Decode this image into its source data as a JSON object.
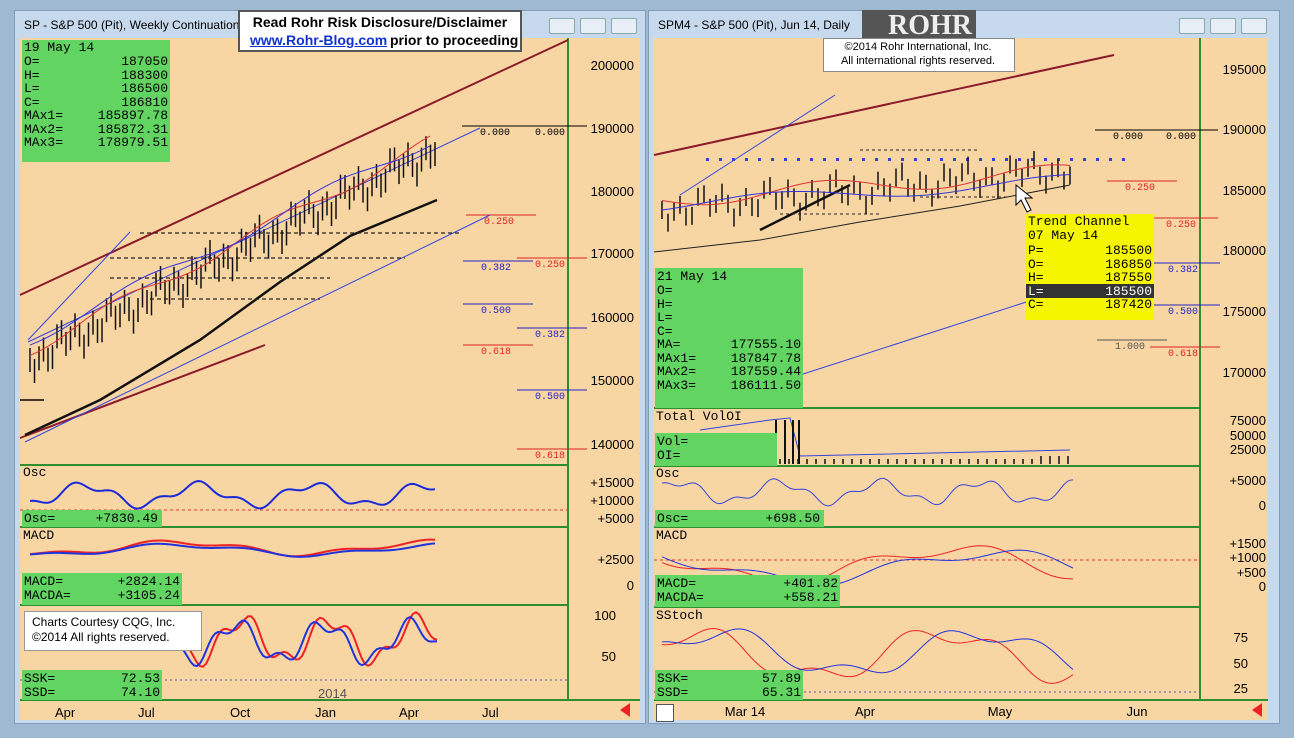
{
  "banner": {
    "line1": "Read Rohr Risk Disclosure/Disclaimer",
    "link": "www.Rohr-Blog.com",
    "line2": "prior to proceeding"
  },
  "left_window": {
    "title": "SP - S&P 500 (Pit), Weekly Continuation",
    "info_box": {
      "date": "19 May 14",
      "rows": [
        {
          "label": "O=",
          "value": 187050
        },
        {
          "label": "H=",
          "value": 188300
        },
        {
          "label": "L=",
          "value": 186500
        },
        {
          "label": "C=",
          "value": 186810
        },
        {
          "label": "MAx1=",
          "value": 185897.78
        },
        {
          "label": "MAx2=",
          "value": 185872.31
        },
        {
          "label": "MAx3=",
          "value": 178979.51
        }
      ]
    },
    "price_axis": [
      200000,
      190000,
      180000,
      170000,
      160000,
      150000,
      140000
    ],
    "fib_labels": [
      "0.000",
      "0.000",
      "0.250",
      "0.250",
      "0.382",
      "0.382",
      "0.500",
      "0.500",
      "0.618",
      "0.618"
    ],
    "osc_panel": {
      "name": "Osc",
      "axis": [
        "+15000",
        "+10000",
        "+5000"
      ],
      "label": "Osc=",
      "value": "+7830.49"
    },
    "macd_panel": {
      "name": "MACD",
      "axis": [
        "+2500",
        0
      ],
      "rows": [
        {
          "label": "MACD=",
          "value": "+2824.14"
        },
        {
          "label": "MACDA=",
          "value": "+3105.24"
        }
      ]
    },
    "stoch_panel": {
      "axis": [
        100,
        50
      ],
      "rows": [
        {
          "label": "SSK=",
          "value": "72.53"
        },
        {
          "label": "SSD=",
          "value": "74.10"
        }
      ]
    },
    "credits": [
      "Charts Courtesy CQG, Inc.",
      "©2014 All rights reserved."
    ],
    "x_axis": [
      "Apr",
      "Jul",
      "Oct",
      "Jan",
      "Apr",
      "Jul"
    ],
    "year_label": "2014"
  },
  "right_window": {
    "title": "SPM4 - S&P 500 (Pit), Jun 14, Daily",
    "logo": "ROHR",
    "copyright": [
      "©2014 Rohr International, Inc.",
      "All international rights reserved."
    ],
    "info_box": {
      "date": "21 May 14",
      "rows": [
        {
          "label": "O="
        },
        {
          "label": "H="
        },
        {
          "label": "L="
        },
        {
          "label": "C="
        },
        {
          "label": "MA=",
          "value": "177555.10"
        },
        {
          "label": "MAx1=",
          "value": 187847.78
        },
        {
          "label": "MAx2=",
          "value": 187559.44
        },
        {
          "label": "MAx3=",
          "value": "186111.50"
        }
      ]
    },
    "trend_box": {
      "title": "Trend Channel",
      "date": "07 May 14",
      "rows": [
        {
          "label": "P=",
          "value": 185500
        },
        {
          "label": "O=",
          "value": 186850
        },
        {
          "label": "H=",
          "value": 187550
        },
        {
          "label": "L=",
          "value": 185500
        },
        {
          "label": "C=",
          "value": 187420
        }
      ]
    },
    "price_axis": [
      195000,
      190000,
      185000,
      180000,
      175000,
      170000
    ],
    "fib_labels": [
      "0.000",
      "0.000",
      "0.250",
      "0.250",
      "0.382",
      "0.500",
      "0.618",
      "1.000"
    ],
    "volume_panel": {
      "name": "Total VolOI",
      "axis": [
        75000,
        50000,
        25000
      ],
      "rows": [
        {
          "label": "Vol="
        },
        {
          "label": "OI="
        }
      ]
    },
    "osc_panel": {
      "name": "Osc",
      "axis": [
        "+5000",
        0
      ],
      "label": "Osc=",
      "value": "+698.50"
    },
    "macd_panel": {
      "name": "MACD",
      "axis": [
        "+1500",
        "+1000",
        "+500",
        0
      ],
      "rows": [
        {
          "label": "MACD=",
          "value": "+401.82"
        },
        {
          "label": "MACDA=",
          "value": "+558.21"
        }
      ]
    },
    "stoch_panel": {
      "name": "SStoch",
      "axis": [
        75,
        50,
        25
      ],
      "rows": [
        {
          "label": "SSK=",
          "value": "57.89"
        },
        {
          "label": "SSD=",
          "value": "65.31"
        }
      ]
    },
    "x_axis": [
      "Mar 14",
      "Apr",
      "May",
      "Jun"
    ]
  }
}
